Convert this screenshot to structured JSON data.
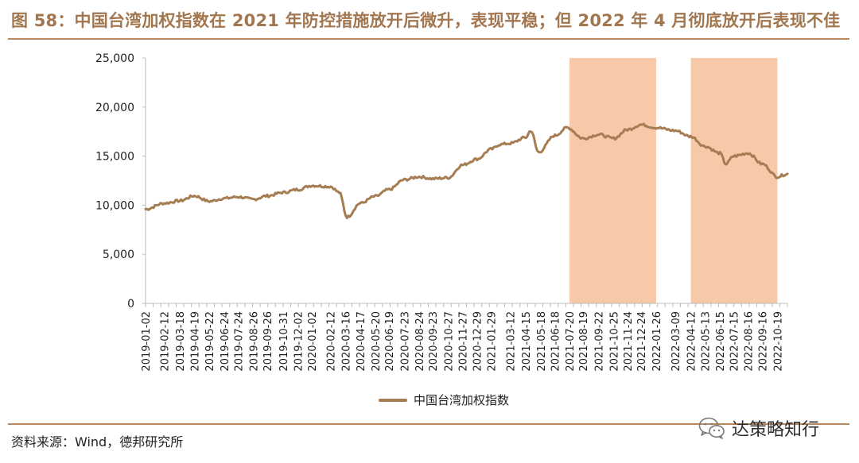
{
  "header": {
    "title": "图 58：中国台湾加权指数在 2021 年防控措施放开后微升，表现平稳；但 2022 年 4 月彻底放开后表现不佳"
  },
  "footer": {
    "source": "资料来源：Wind，德邦研究所",
    "watermark": "达策略知行",
    "watermark_icon": "wechat-icon"
  },
  "colors": {
    "accent": "#a2774f",
    "line": "#a67c52",
    "band": "#f7c9a8",
    "rule": "#b8895e"
  },
  "chart_data": {
    "type": "line",
    "title": "",
    "xlabel": "",
    "ylabel": "",
    "ylim": [
      0,
      25000
    ],
    "yticks": [
      "0",
      "5,000",
      "10,000",
      "15,000",
      "20,000",
      "25,000"
    ],
    "grid": false,
    "legend_position": "bottom-center",
    "x_range": [
      "2019-01-02",
      "2022-11-10"
    ],
    "x_tick_labels": [
      "2019-01-02",
      "2019-02-12",
      "2019-03-18",
      "2019-04-19",
      "2019-05-22",
      "2019-06-24",
      "2019-07-24",
      "2019-08-26",
      "2019-09-26",
      "2019-10-31",
      "2019-12-02",
      "2020-01-02",
      "2020-02-12",
      "2020-03-16",
      "2020-04-17",
      "2020-05-20",
      "2020-06-19",
      "2020-07-23",
      "2020-08-24",
      "2020-09-23",
      "2020-10-27",
      "2020-11-27",
      "2020-12-29",
      "2021-01-29",
      "2021-03-12",
      "2021-04-15",
      "2021-05-18",
      "2021-06-18",
      "2021-07-20",
      "2021-08-19",
      "2021-09-22",
      "2021-10-25",
      "2021-11-24",
      "2021-12-24",
      "2022-01-26",
      "2022-03-09",
      "2022-04-12",
      "2022-05-13",
      "2022-06-15",
      "2022-07-15",
      "2022-08-16",
      "2022-09-16",
      "2022-10-19"
    ],
    "shaded_periods": [
      {
        "start": "2021-07-20",
        "end": "2022-01-26"
      },
      {
        "start": "2022-04-12",
        "end": "2022-10-19"
      }
    ],
    "series": [
      {
        "name": "中国台湾加权指数",
        "x": [
          "2019-01-02",
          "2019-02-12",
          "2019-03-18",
          "2019-04-19",
          "2019-05-22",
          "2019-06-24",
          "2019-07-24",
          "2019-08-26",
          "2019-09-26",
          "2019-10-31",
          "2019-12-02",
          "2020-01-02",
          "2020-02-12",
          "2020-03-02",
          "2020-03-19",
          "2020-04-17",
          "2020-05-20",
          "2020-06-19",
          "2020-07-23",
          "2020-08-24",
          "2020-09-23",
          "2020-10-27",
          "2020-11-27",
          "2020-12-29",
          "2021-01-29",
          "2021-02-18",
          "2021-03-12",
          "2021-04-15",
          "2021-04-26",
          "2021-05-13",
          "2021-06-18",
          "2021-07-15",
          "2021-08-19",
          "2021-09-22",
          "2021-10-25",
          "2021-11-24",
          "2021-12-24",
          "2022-01-26",
          "2022-03-09",
          "2022-04-12",
          "2022-05-13",
          "2022-06-15",
          "2022-06-28",
          "2022-07-15",
          "2022-08-16",
          "2022-09-16",
          "2022-10-19",
          "2022-11-10"
        ],
        "values": [
          9600,
          10200,
          10450,
          10950,
          10400,
          10700,
          10850,
          10600,
          10950,
          11300,
          11600,
          12000,
          11900,
          11300,
          8800,
          10200,
          10900,
          11600,
          12600,
          12900,
          12700,
          12800,
          14100,
          14700,
          15700,
          16200,
          16300,
          16900,
          17600,
          15400,
          17100,
          17900,
          16800,
          17200,
          16800,
          17700,
          18200,
          17900,
          17600,
          17000,
          16000,
          15300,
          14200,
          15000,
          15300,
          14200,
          12900,
          13200
        ]
      }
    ]
  }
}
